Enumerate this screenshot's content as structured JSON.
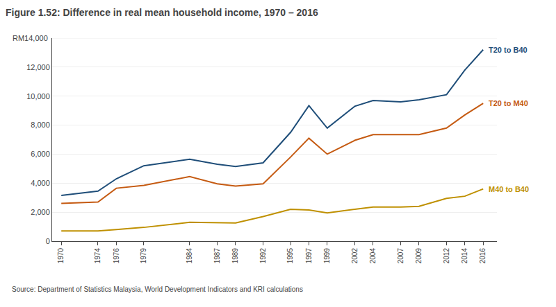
{
  "chart_data": {
    "type": "line",
    "title": "Figure 1.52: Difference in real mean household income, 1970 – 2016",
    "annotations": [
      "RM14,000",
      "Source: Department of Statistics Malaysia, World Development Indicators and KRI calculations"
    ],
    "x": [
      1970,
      1974,
      1976,
      1979,
      1984,
      1987,
      1989,
      1992,
      1995,
      1997,
      1999,
      2002,
      2004,
      2007,
      2009,
      2012,
      2014,
      2016
    ],
    "series": [
      {
        "name": "T20 to B40",
        "color": "#1f4e79",
        "values": [
          3150,
          3450,
          4300,
          5200,
          5650,
          5300,
          5150,
          5400,
          7500,
          9350,
          7800,
          9300,
          9700,
          9600,
          9750,
          10100,
          11800,
          13200
        ]
      },
      {
        "name": "T20 to M40",
        "color": "#c55a11",
        "values": [
          2600,
          2700,
          3650,
          3850,
          4450,
          3950,
          3800,
          3950,
          5800,
          7100,
          6000,
          6950,
          7350,
          7350,
          7350,
          7800,
          8700,
          9500
        ]
      },
      {
        "name": "M40 to B40",
        "color": "#bf9000",
        "values": [
          700,
          700,
          800,
          950,
          1300,
          1250,
          1250,
          1700,
          2200,
          2150,
          1950,
          2200,
          2350,
          2350,
          2400,
          2950,
          3100,
          3600
        ]
      }
    ],
    "xlim": [
      1969,
      2017.5
    ],
    "xticks": [
      1970,
      1974,
      1976,
      1979,
      1984,
      1987,
      1989,
      1992,
      1995,
      1997,
      1999,
      2002,
      2004,
      2007,
      2009,
      2012,
      2014,
      2016
    ],
    "ylim": [
      0,
      14000
    ],
    "yticks": [
      0,
      {
        "value": 2000,
        "label": "2,000"
      },
      {
        "value": 4000,
        "label": "4,000"
      },
      {
        "value": 6000,
        "label": "6,000"
      },
      {
        "value": 8000,
        "label": "8,000"
      },
      {
        "value": 10000,
        "label": "10,000"
      },
      {
        "value": 12000,
        "label": "12,000"
      }
    ],
    "grid": true
  }
}
